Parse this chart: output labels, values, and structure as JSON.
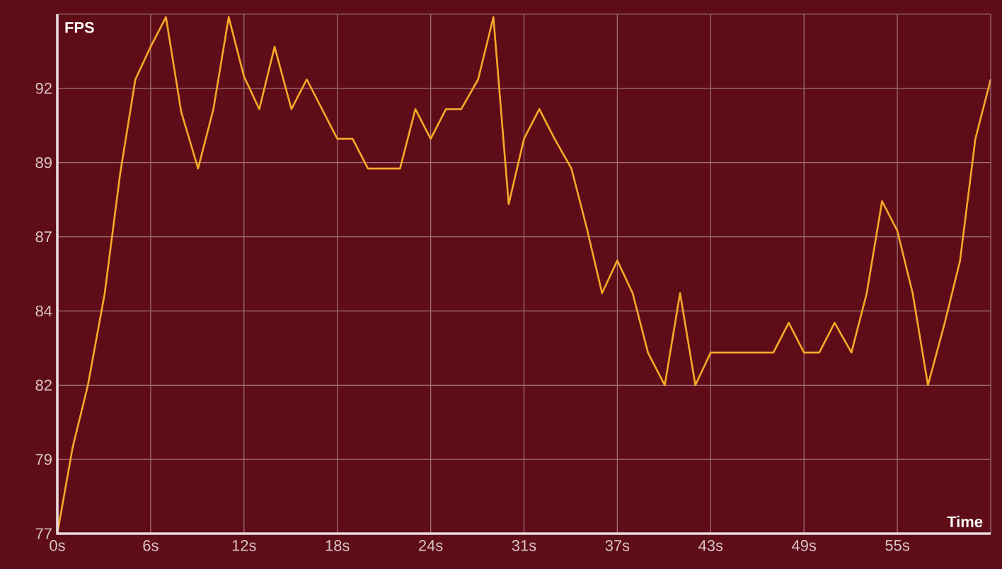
{
  "chart_data": {
    "type": "line",
    "xlabel": "Time",
    "ylabel": "FPS",
    "color": "#f7a928",
    "grid": true,
    "x": [
      0,
      1.0,
      2.0,
      3.1,
      4.1,
      5.1,
      6.1,
      7.1,
      8.1,
      9.2,
      10.2,
      11.2,
      12.2,
      13.2,
      14.2,
      15.3,
      16.3,
      17.3,
      18.3,
      19.3,
      20.3,
      21.4,
      22.4,
      23.4,
      24.4,
      25.4,
      26.4,
      27.5,
      28.5,
      29.5,
      30.5,
      31.5,
      32.5,
      33.6,
      34.6,
      35.6,
      36.6,
      37.6,
      38.6,
      39.7,
      40.7,
      41.7,
      42.7,
      43.7,
      44.7,
      45.8,
      46.8,
      47.8,
      48.8,
      49.8,
      50.8,
      51.9,
      52.9,
      53.9,
      54.9,
      55.9,
      56.9,
      58.0,
      59.0,
      60.0,
      61.0
    ],
    "values": [
      76.9,
      79.8,
      81.9,
      85.0,
      89.0,
      92.2,
      93.3,
      94.3,
      91.1,
      89.2,
      91.2,
      94.3,
      92.3,
      91.2,
      93.3,
      91.2,
      92.2,
      91.2,
      90.2,
      90.2,
      89.2,
      89.2,
      89.2,
      91.2,
      90.2,
      91.2,
      91.2,
      92.2,
      94.3,
      88.0,
      90.2,
      91.2,
      90.2,
      89.2,
      87.2,
      85.0,
      86.1,
      85.0,
      83.0,
      81.9,
      85.0,
      81.9,
      83.0,
      83.0,
      83.0,
      83.0,
      83.0,
      84.0,
      83.0,
      83.0,
      84.0,
      83.0,
      85.0,
      88.1,
      87.1,
      85.0,
      81.9,
      84.0,
      86.1,
      90.2,
      92.2
    ],
    "xlim": [
      0,
      61
    ],
    "xticks": [
      {
        "value": 0,
        "label": "0s"
      },
      {
        "value": 6.1,
        "label": "6s"
      },
      {
        "value": 12.2,
        "label": "12s"
      },
      {
        "value": 18.3,
        "label": "18s"
      },
      {
        "value": 24.4,
        "label": "24s"
      },
      {
        "value": 30.5,
        "label": "31s"
      },
      {
        "value": 36.6,
        "label": "37s"
      },
      {
        "value": 42.7,
        "label": "43s"
      },
      {
        "value": 48.8,
        "label": "49s"
      },
      {
        "value": 54.9,
        "label": "55s"
      }
    ],
    "ylim": [
      76.9,
      94.4
    ],
    "yticks": [
      {
        "value": 76.9,
        "label": "77"
      },
      {
        "value": 79.4,
        "label": "79"
      },
      {
        "value": 81.9,
        "label": "82"
      },
      {
        "value": 84.4,
        "label": "84"
      },
      {
        "value": 86.9,
        "label": "87"
      },
      {
        "value": 89.4,
        "label": "89"
      },
      {
        "value": 91.9,
        "label": "92"
      }
    ],
    "marker": "none",
    "line_style": "solid"
  }
}
